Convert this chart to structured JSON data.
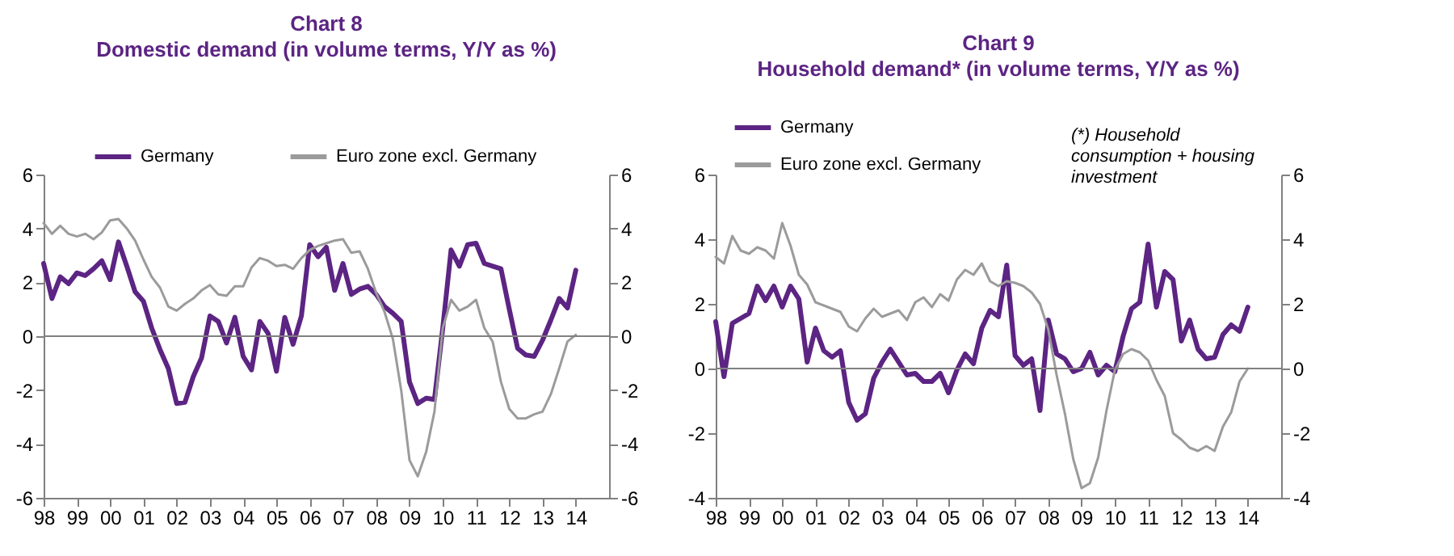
{
  "chart_data": [
    {
      "type": "line",
      "title": "Chart 8",
      "subtitle": "Domestic demand (in volume terms, Y/Y as %)",
      "legend": "top",
      "x": [
        1998,
        1998.25,
        1998.5,
        1998.75,
        1999,
        1999.25,
        1999.5,
        1999.75,
        2000,
        2000.25,
        2000.5,
        2000.75,
        2001,
        2001.25,
        2001.5,
        2001.75,
        2002,
        2002.25,
        2002.5,
        2002.75,
        2003,
        2003.25,
        2003.5,
        2003.75,
        2004,
        2004.25,
        2004.5,
        2004.75,
        2005,
        2005.25,
        2005.5,
        2005.75,
        2006,
        2006.25,
        2006.5,
        2006.75,
        2007,
        2007.25,
        2007.5,
        2007.75,
        2008,
        2008.25,
        2008.5,
        2008.75,
        2009,
        2009.25,
        2009.5,
        2009.75,
        2010,
        2010.25,
        2010.5,
        2010.75,
        2011,
        2011.25,
        2011.5,
        2011.75,
        2012,
        2012.25,
        2012.5,
        2012.75,
        2013,
        2013.25,
        2013.5,
        2013.75,
        2014
      ],
      "series": [
        {
          "name": "Germany",
          "color": "#5c2483",
          "values": [
            2.7,
            1.4,
            2.2,
            1.95,
            2.35,
            2.25,
            2.5,
            2.8,
            2.1,
            3.5,
            2.6,
            1.65,
            1.3,
            0.3,
            -0.5,
            -1.2,
            -2.5,
            -2.45,
            -1.5,
            -0.8,
            0.75,
            0.55,
            -0.25,
            0.7,
            -0.75,
            -1.25,
            0.55,
            0.1,
            -1.3,
            0.7,
            -0.3,
            0.75,
            3.4,
            2.95,
            3.3,
            1.7,
            2.7,
            1.55,
            1.75,
            1.85,
            1.55,
            1.1,
            0.85,
            0.55,
            -1.7,
            -2.5,
            -2.3,
            -2.35,
            0.3,
            3.2,
            2.6,
            3.4,
            3.45,
            2.7,
            2.6,
            2.5,
            1.0,
            -0.45,
            -0.7,
            -0.75,
            -0.15,
            0.6,
            1.4,
            1.05,
            2.45
          ]
        },
        {
          "name": "Euro zone excl. Germany",
          "color": "#9b9b9b",
          "values": [
            4.2,
            3.8,
            4.1,
            3.8,
            3.7,
            3.8,
            3.6,
            3.85,
            4.3,
            4.35,
            4.0,
            3.55,
            2.85,
            2.2,
            1.8,
            1.1,
            0.95,
            1.2,
            1.4,
            1.7,
            1.9,
            1.55,
            1.5,
            1.85,
            1.85,
            2.55,
            2.9,
            2.8,
            2.6,
            2.65,
            2.5,
            2.9,
            3.2,
            3.35,
            3.45,
            3.55,
            3.6,
            3.1,
            3.15,
            2.5,
            1.6,
            0.9,
            -0.1,
            -2.0,
            -4.6,
            -5.2,
            -4.3,
            -2.8,
            0.3,
            1.35,
            0.95,
            1.1,
            1.35,
            0.3,
            -0.2,
            -1.7,
            -2.7,
            -3.05,
            -3.05,
            -2.9,
            -2.8,
            -2.15,
            -1.2,
            -0.2,
            0.05
          ]
        }
      ],
      "xlim": [
        1998,
        2015
      ],
      "xticks": [
        {
          "value": 1998,
          "label": "98"
        },
        {
          "value": 1999,
          "label": "99"
        },
        {
          "value": 2000,
          "label": "00"
        },
        {
          "value": 2001,
          "label": "01"
        },
        {
          "value": 2002,
          "label": "02"
        },
        {
          "value": 2003,
          "label": "03"
        },
        {
          "value": 2004,
          "label": "04"
        },
        {
          "value": 2005,
          "label": "05"
        },
        {
          "value": 2006,
          "label": "06"
        },
        {
          "value": 2007,
          "label": "07"
        },
        {
          "value": 2008,
          "label": "08"
        },
        {
          "value": 2009,
          "label": "09"
        },
        {
          "value": 2010,
          "label": "10"
        },
        {
          "value": 2011,
          "label": "11"
        },
        {
          "value": 2012,
          "label": "12"
        },
        {
          "value": 2013,
          "label": "13"
        },
        {
          "value": 2014,
          "label": "14"
        }
      ],
      "ylim": [
        -6,
        6
      ],
      "yticks": [
        -6,
        -4,
        -2,
        0,
        2,
        4,
        6
      ],
      "y2lim": [
        -6,
        6
      ],
      "y2ticks": [
        -6,
        -4,
        -2,
        0,
        2,
        4,
        6
      ],
      "ref_lines": [
        {
          "axis": "y",
          "value": 0,
          "color": "#808080"
        }
      ]
    },
    {
      "type": "line",
      "title": "Chart 9",
      "subtitle": "Household demand* (in volume terms, Y/Y as %)",
      "legend": "top left",
      "annotations": [
        "(*) Household consumption + housing investment"
      ],
      "x": [
        1998,
        1998.25,
        1998.5,
        1998.75,
        1999,
        1999.25,
        1999.5,
        1999.75,
        2000,
        2000.25,
        2000.5,
        2000.75,
        2001,
        2001.25,
        2001.5,
        2001.75,
        2002,
        2002.25,
        2002.5,
        2002.75,
        2003,
        2003.25,
        2003.5,
        2003.75,
        2004,
        2004.25,
        2004.5,
        2004.75,
        2005,
        2005.25,
        2005.5,
        2005.75,
        2006,
        2006.25,
        2006.5,
        2006.75,
        2007,
        2007.25,
        2007.5,
        2007.75,
        2008,
        2008.25,
        2008.5,
        2008.75,
        2009,
        2009.25,
        2009.5,
        2009.75,
        2010,
        2010.25,
        2010.5,
        2010.75,
        2011,
        2011.25,
        2011.5,
        2011.75,
        2012,
        2012.25,
        2012.5,
        2012.75,
        2013,
        2013.25,
        2013.5,
        2013.75,
        2014
      ],
      "series": [
        {
          "name": "Germany",
          "color": "#5c2483",
          "values": [
            1.45,
            -0.25,
            1.4,
            1.55,
            1.7,
            2.55,
            2.1,
            2.55,
            1.9,
            2.55,
            2.15,
            0.2,
            1.25,
            0.55,
            0.35,
            0.55,
            -1.05,
            -1.6,
            -1.4,
            -0.3,
            0.2,
            0.6,
            0.2,
            -0.2,
            -0.15,
            -0.4,
            -0.4,
            -0.15,
            -0.75,
            -0.05,
            0.45,
            0.15,
            1.25,
            1.8,
            1.6,
            3.2,
            0.4,
            0.1,
            0.3,
            -1.3,
            1.5,
            0.45,
            0.3,
            -0.1,
            0.0,
            0.5,
            -0.2,
            0.1,
            -0.1,
            1.0,
            1.85,
            2.05,
            3.85,
            1.9,
            3.0,
            2.75,
            0.85,
            1.5,
            0.6,
            0.3,
            0.35,
            1.05,
            1.35,
            1.15,
            1.9
          ]
        },
        {
          "name": "Euro zone excl. Germany",
          "color": "#9b9b9b",
          "values": [
            3.45,
            3.25,
            4.1,
            3.65,
            3.55,
            3.75,
            3.65,
            3.4,
            4.5,
            3.8,
            2.9,
            2.6,
            2.05,
            1.95,
            1.85,
            1.75,
            1.3,
            1.15,
            1.55,
            1.85,
            1.6,
            1.7,
            1.8,
            1.5,
            2.05,
            2.2,
            1.9,
            2.3,
            2.1,
            2.75,
            3.05,
            2.9,
            3.25,
            2.7,
            2.55,
            2.7,
            2.65,
            2.55,
            2.35,
            2.0,
            1.2,
            -0.2,
            -1.4,
            -2.8,
            -3.7,
            -3.55,
            -2.75,
            -1.3,
            -0.05,
            0.45,
            0.6,
            0.5,
            0.25,
            -0.35,
            -0.85,
            -2.0,
            -2.2,
            -2.45,
            -2.55,
            -2.4,
            -2.55,
            -1.8,
            -1.35,
            -0.4,
            0.0
          ]
        }
      ],
      "xlim": [
        1998,
        2015
      ],
      "xticks": [
        {
          "value": 1998,
          "label": "98"
        },
        {
          "value": 1999,
          "label": "99"
        },
        {
          "value": 2000,
          "label": "00"
        },
        {
          "value": 2001,
          "label": "01"
        },
        {
          "value": 2002,
          "label": "02"
        },
        {
          "value": 2003,
          "label": "03"
        },
        {
          "value": 2004,
          "label": "04"
        },
        {
          "value": 2005,
          "label": "05"
        },
        {
          "value": 2006,
          "label": "06"
        },
        {
          "value": 2007,
          "label": "07"
        },
        {
          "value": 2008,
          "label": "08"
        },
        {
          "value": 2009,
          "label": "09"
        },
        {
          "value": 2010,
          "label": "10"
        },
        {
          "value": 2011,
          "label": "11"
        },
        {
          "value": 2012,
          "label": "12"
        },
        {
          "value": 2013,
          "label": "13"
        },
        {
          "value": 2014,
          "label": "14"
        }
      ],
      "ylim": [
        -4,
        6
      ],
      "yticks": [
        -4,
        -2,
        0,
        2,
        4,
        6
      ],
      "y2lim": [
        -4,
        6
      ],
      "y2ticks": [
        -4,
        -2,
        0,
        2,
        4,
        6
      ],
      "ref_lines": [
        {
          "axis": "y",
          "value": 0,
          "color": "#808080"
        }
      ]
    }
  ]
}
